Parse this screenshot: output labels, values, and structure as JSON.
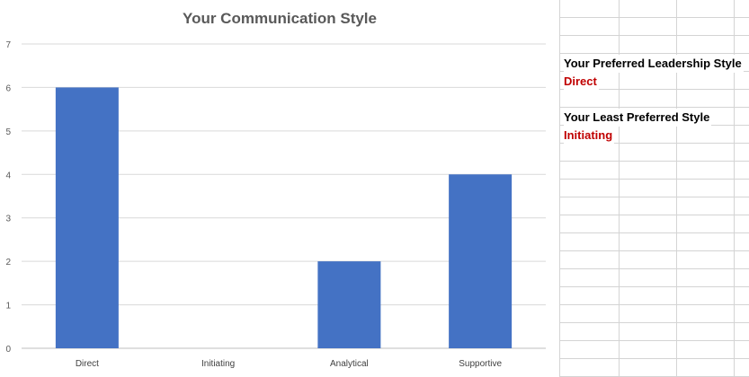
{
  "chart_data": {
    "type": "bar",
    "title": "Your Communication Style",
    "categories": [
      "Direct",
      "Initiating",
      "Analytical",
      "Supportive"
    ],
    "values": [
      6,
      0,
      2,
      4
    ],
    "ylim": [
      0,
      7
    ],
    "yticks": [
      "0",
      "1",
      "2",
      "3",
      "4",
      "5",
      "6",
      "7"
    ],
    "grid": true,
    "bar_color": "#4472c4",
    "xlabel": "",
    "ylabel": ""
  },
  "sheet": {
    "preferred_label": "Your Preferred Leadership Style",
    "preferred_value": "Direct",
    "least_label": "Your Least Preferred Style",
    "least_value": "Initiating",
    "value_color": "#c00000"
  }
}
